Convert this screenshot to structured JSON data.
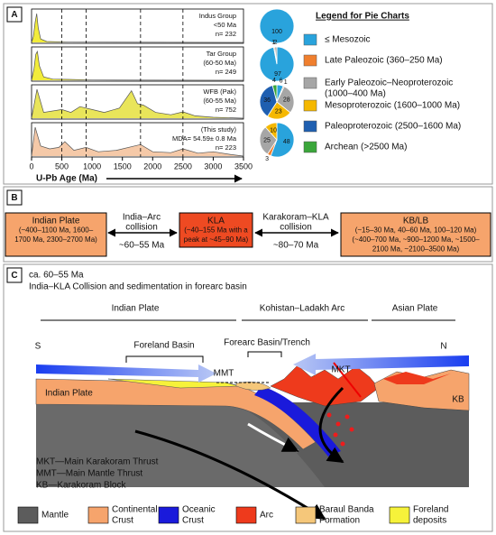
{
  "panel_a": {
    "label": "A",
    "xlabel": "U-Pb Age (Ma)",
    "xlim": [
      0,
      3500
    ],
    "xticks": [
      0,
      500,
      1000,
      1500,
      2000,
      2500,
      3000,
      3500
    ],
    "reference_ages": [
      500,
      900,
      1800,
      2500
    ],
    "samples": [
      {
        "lines": [
          "Indus Group",
          "<50 Ma",
          "n= 232"
        ],
        "fill": "#f2ec3a",
        "curve": [
          [
            0,
            0
          ],
          [
            30,
            0.2
          ],
          [
            60,
            0.7
          ],
          [
            85,
            1
          ],
          [
            110,
            0.5
          ],
          [
            150,
            0.12
          ],
          [
            250,
            0.03
          ],
          [
            600,
            0.01
          ],
          [
            3500,
            0
          ]
        ],
        "pie": [
          100,
          null,
          null,
          null,
          null,
          null
        ]
      },
      {
        "lines": [
          "Tar Group",
          "(60-50 Ma)",
          "n= 249"
        ],
        "fill": "#f2ec3a",
        "curve": [
          [
            0,
            0
          ],
          [
            40,
            0.4
          ],
          [
            70,
            0.9
          ],
          [
            95,
            1
          ],
          [
            130,
            0.5
          ],
          [
            200,
            0.12
          ],
          [
            350,
            0.04
          ],
          [
            600,
            0.03
          ],
          [
            1000,
            0.01
          ],
          [
            3500,
            0
          ]
        ],
        "pie": [
          97,
          1,
          2,
          null,
          null,
          null
        ]
      },
      {
        "lines": [
          "WFB (Pak)",
          "(60-55 Ma)",
          "n= 752"
        ],
        "fill": "#e9e55a",
        "curve": [
          [
            0,
            0
          ],
          [
            90,
            1
          ],
          [
            200,
            0.2
          ],
          [
            500,
            0.3
          ],
          [
            650,
            0.2
          ],
          [
            800,
            0.4
          ],
          [
            1000,
            0.3
          ],
          [
            1200,
            0.2
          ],
          [
            1450,
            0.35
          ],
          [
            1650,
            0.95
          ],
          [
            1750,
            0.5
          ],
          [
            1850,
            0.45
          ],
          [
            2050,
            0.2
          ],
          [
            2300,
            0.12
          ],
          [
            2500,
            0.22
          ],
          [
            2700,
            0.08
          ],
          [
            3000,
            0.03
          ],
          [
            3500,
            0
          ]
        ],
        "pie": [
          6,
          1,
          28,
          23,
          36,
          4
        ]
      },
      {
        "lines": [
          "(This study)",
          "MDA= 54.59± 0.8 Ma",
          "n= 223"
        ],
        "fill": "#f5c9a8",
        "curve": [
          [
            0,
            0
          ],
          [
            60,
            1
          ],
          [
            150,
            0.35
          ],
          [
            300,
            0.25
          ],
          [
            450,
            0.3
          ],
          [
            550,
            0.5
          ],
          [
            700,
            0.2
          ],
          [
            900,
            0.3
          ],
          [
            1100,
            0.15
          ],
          [
            1400,
            0.2
          ],
          [
            1800,
            0.4
          ],
          [
            2000,
            0.15
          ],
          [
            2300,
            0.12
          ],
          [
            2500,
            0.25
          ],
          [
            2750,
            0.1
          ],
          [
            3000,
            0.15
          ],
          [
            3300,
            0.05
          ],
          [
            3500,
            0
          ]
        ],
        "pie": [
          48,
          3,
          25,
          10,
          null,
          null
        ]
      }
    ],
    "legend": {
      "title": "Legend for Pie Charts",
      "entries": [
        {
          "lines": [
            "≤ Mesozoic"
          ],
          "color": "#29a3dc"
        },
        {
          "lines": [
            "Late Paleozoic (360–250 Ma)"
          ],
          "color": "#f07f2e"
        },
        {
          "lines": [
            "Early Paleozoic–Neoproterozoic",
            "(1000–400 Ma)"
          ],
          "color": "#a6a6a6"
        },
        {
          "lines": [
            "Mesoproterozoic (1600–1000 Ma)"
          ],
          "color": "#f5b800"
        },
        {
          "lines": [
            "Paleoproterozoic (2500–1600 Ma)"
          ],
          "color": "#1f5fb0"
        },
        {
          "lines": [
            "Archean (>2500 Ma)"
          ],
          "color": "#3aa63a"
        }
      ]
    }
  },
  "panel_b": {
    "label": "B",
    "boxes": [
      {
        "lines": [
          "Indian Plate",
          "(~400–1100 Ma, 1600–",
          "1700 Ma, 2300–2700 Ma)"
        ],
        "color": "#f6a46c"
      },
      {
        "lines": [
          "KLA",
          "(~40–155 Ma with a",
          "peak at ~45–90 Ma)"
        ],
        "color": "#ee4a22"
      },
      {
        "lines": [
          "KB/LB",
          "(~15–30 Ma, 40–60 Ma, 100–120 Ma)",
          "(~400–700 Ma, ~900–1200 Ma, ~1500–",
          "2100 Ma, ~2100–3500 Ma)"
        ],
        "color": "#f6a46c"
      }
    ],
    "links": [
      {
        "lines": [
          "India–Arc",
          "collision"
        ],
        "age": "~60–55 Ma"
      },
      {
        "lines": [
          "Karakoram–KLA",
          "collision"
        ],
        "age": "~80–70 Ma"
      }
    ]
  },
  "panel_c": {
    "label": "C",
    "title": [
      "ca. 60–55 Ma",
      "India–KLA Collision and sedimentation in forearc basin"
    ],
    "regions": [
      "Indian Plate",
      "Kohistan–Ladakh Arc",
      "Asian Plate"
    ],
    "directions": [
      "S",
      "N"
    ],
    "basins": [
      "Foreland Basin",
      "Forearc Basin/Trench"
    ],
    "features": [
      "MMT",
      "MKT",
      "Indian Plate",
      "KB"
    ],
    "notes": [
      "MKT—Main Karakoram Thrust",
      "MMT—Main Mantle Thrust",
      "KB—Karakoram Block"
    ],
    "legend": [
      {
        "lines": [
          "Mantle"
        ],
        "color": "#5c5c5c"
      },
      {
        "lines": [
          "Continental",
          "Crust"
        ],
        "color": "#f6a46c"
      },
      {
        "lines": [
          "Oceanic",
          "Crust"
        ],
        "color": "#1a1adb"
      },
      {
        "lines": [
          "Arc"
        ],
        "color": "#ee3a1c"
      },
      {
        "lines": [
          "Baraul Banda",
          "Formation"
        ],
        "color": "#f5c77a"
      },
      {
        "lines": [
          "Foreland",
          "deposits"
        ],
        "color": "#f6f23a"
      }
    ]
  }
}
